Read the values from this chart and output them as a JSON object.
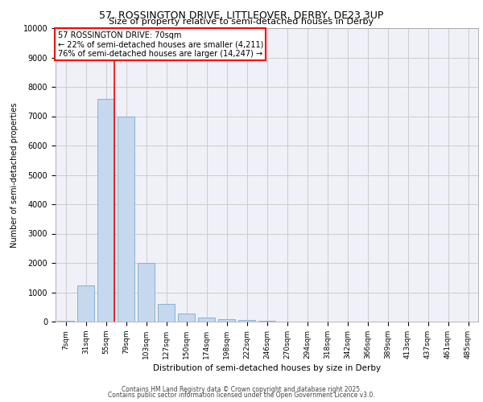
{
  "title_line1": "57, ROSSINGTON DRIVE, LITTLEOVER, DERBY, DE23 3UP",
  "title_line2": "Size of property relative to semi-detached houses in Derby",
  "xlabel": "Distribution of semi-detached houses by size in Derby",
  "ylabel": "Number of semi-detached properties",
  "categories": [
    "7sqm",
    "31sqm",
    "55sqm",
    "79sqm",
    "103sqm",
    "127sqm",
    "150sqm",
    "174sqm",
    "198sqm",
    "222sqm",
    "246sqm",
    "270sqm",
    "294sqm",
    "318sqm",
    "342sqm",
    "366sqm",
    "389sqm",
    "413sqm",
    "437sqm",
    "461sqm",
    "485sqm"
  ],
  "values": [
    30,
    1220,
    7600,
    7000,
    2000,
    600,
    270,
    130,
    80,
    55,
    40,
    0,
    0,
    0,
    0,
    0,
    0,
    0,
    0,
    0,
    0
  ],
  "bar_color": "#c5d8ee",
  "bar_edge_color": "#7aacce",
  "grid_color": "#cccccc",
  "background_color": "#f0f0f8",
  "vline_color": "red",
  "annotation_text": "57 ROSSINGTON DRIVE: 70sqm\n← 22% of semi-detached houses are smaller (4,211)\n76% of semi-detached houses are larger (14,247) →",
  "annotation_box_color": "red",
  "ylim": [
    0,
    10000
  ],
  "yticks": [
    0,
    1000,
    2000,
    3000,
    4000,
    5000,
    6000,
    7000,
    8000,
    9000,
    10000
  ],
  "footer_line1": "Contains HM Land Registry data © Crown copyright and database right 2025.",
  "footer_line2": "Contains public sector information licensed under the Open Government Licence v3.0.",
  "title_fontsize": 9,
  "subtitle_fontsize": 8,
  "ylabel_fontsize": 7,
  "xlabel_fontsize": 7.5,
  "tick_fontsize": 6.5,
  "footer_fontsize": 5.5,
  "ann_fontsize": 7
}
